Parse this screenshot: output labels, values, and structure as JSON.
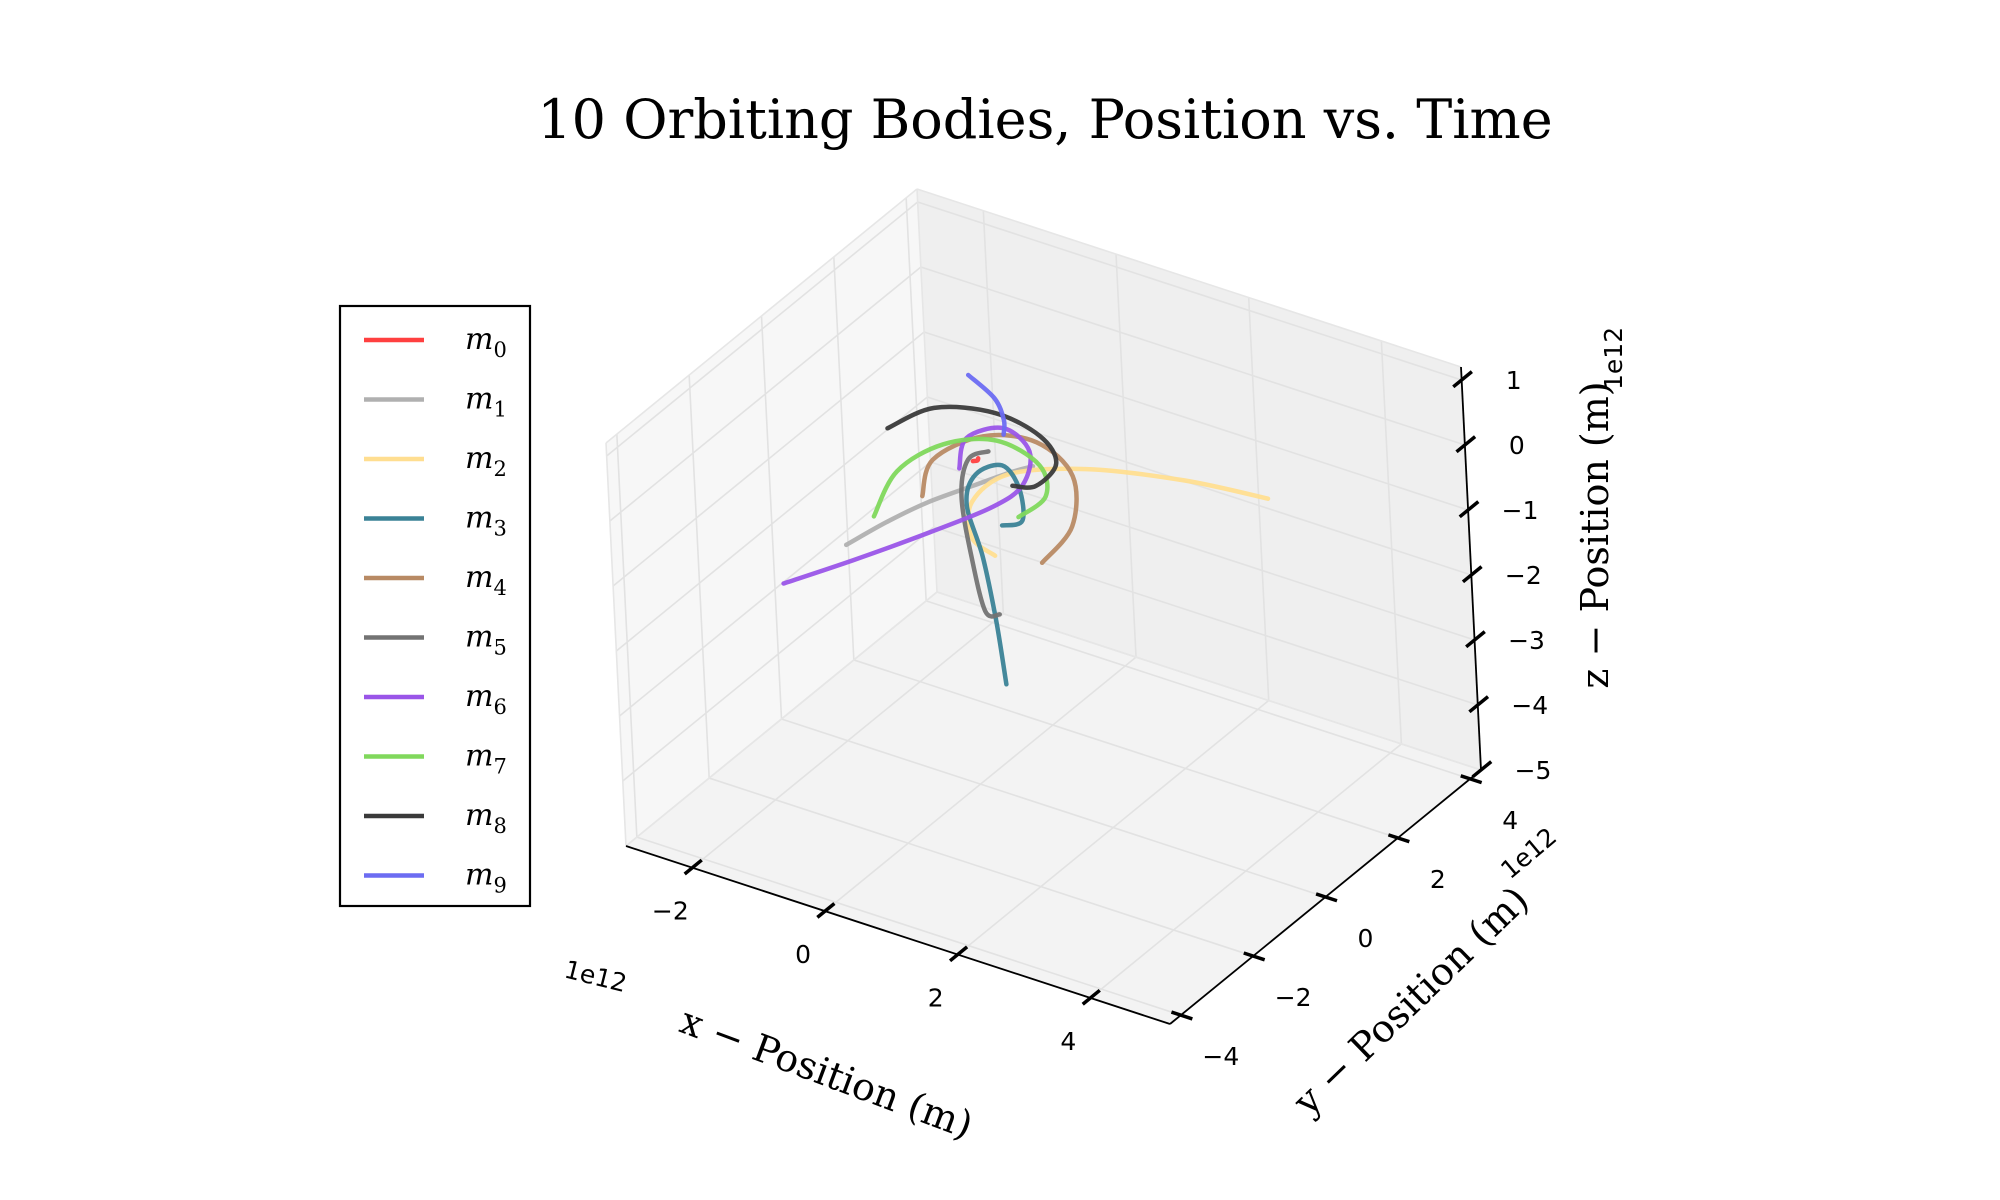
{
  "chart_data": {
    "type": "line",
    "projection": "3d",
    "title": "10 Orbiting Bodies, Position vs. Time",
    "xlabel": "x − Position (m)",
    "ylabel": "y − Position (m)",
    "zlabel": "z − Position (m)",
    "x_multiplier": "1e12",
    "y_multiplier": "1e12",
    "z_multiplier": "1e12",
    "xlim": [
      -3.0,
      5.2
    ],
    "ylim": [
      -4.3,
      4.3
    ],
    "zlim": [
      -5.0,
      1.2
    ],
    "x_ticks": [
      {
        "v": -2,
        "label": "−2"
      },
      {
        "v": 0,
        "label": "0"
      },
      {
        "v": 2,
        "label": "2"
      },
      {
        "v": 4,
        "label": "4"
      }
    ],
    "y_ticks": [
      {
        "v": -4,
        "label": "−4"
      },
      {
        "v": -2,
        "label": "−2"
      },
      {
        "v": 0,
        "label": "0"
      },
      {
        "v": 2,
        "label": "2"
      },
      {
        "v": 4,
        "label": "4"
      }
    ],
    "z_ticks": [
      {
        "v": -5,
        "label": "−5"
      },
      {
        "v": -4,
        "label": "−4"
      },
      {
        "v": -3,
        "label": "−3"
      },
      {
        "v": -2,
        "label": "−2"
      },
      {
        "v": -1,
        "label": "−1"
      },
      {
        "v": 0,
        "label": "0"
      },
      {
        "v": 1,
        "label": "1"
      }
    ],
    "grid": true,
    "legend_position": "left",
    "series": [
      {
        "name": "m",
        "sub": "0",
        "color": "#ff4040",
        "points": [
          [
            0.1,
            0.05,
            -0.02
          ],
          [
            0.14,
            0.1,
            -0.02
          ],
          [
            0.12,
            0.16,
            -0.02
          ]
        ]
      },
      {
        "name": "m",
        "sub": "1",
        "color": "#b0b0b0",
        "points": [
          [
            -1.3,
            -1.0,
            -1.3
          ],
          [
            -0.9,
            -0.6,
            -1.0
          ],
          [
            -0.5,
            -0.2,
            -0.75
          ],
          [
            0.0,
            0.2,
            -0.5
          ],
          [
            0.4,
            0.5,
            -0.3
          ],
          [
            0.7,
            0.6,
            -0.15
          ]
        ]
      },
      {
        "name": "m",
        "sub": "2",
        "color": "#ffde90",
        "points": [
          [
            3.7,
            1.6,
            -0.1
          ],
          [
            2.6,
            1.3,
            -0.05
          ],
          [
            1.4,
            0.8,
            -0.05
          ],
          [
            0.5,
            0.3,
            -0.2
          ],
          [
            0.2,
            -0.2,
            -0.5
          ],
          [
            0.4,
            -0.6,
            -0.8
          ],
          [
            0.8,
            -0.7,
            -0.9
          ]
        ]
      },
      {
        "name": "m",
        "sub": "3",
        "color": "#3a8296",
        "points": [
          [
            0.3,
            0.3,
            -3.5
          ],
          [
            0.25,
            0.2,
            -2.5
          ],
          [
            0.15,
            0.1,
            -1.5
          ],
          [
            0.0,
            0.0,
            -0.7
          ],
          [
            0.1,
            0.1,
            -0.25
          ],
          [
            0.4,
            0.3,
            -0.1
          ],
          [
            0.7,
            0.2,
            -0.3
          ],
          [
            0.9,
            -0.1,
            -0.6
          ],
          [
            0.7,
            -0.3,
            -0.65
          ]
        ]
      },
      {
        "name": "m",
        "sub": "4",
        "color": "#b88a64",
        "points": [
          [
            1.4,
            -0.5,
            -0.9
          ],
          [
            1.6,
            0.0,
            -0.5
          ],
          [
            1.3,
            0.6,
            -0.1
          ],
          [
            0.6,
            0.9,
            0.05
          ],
          [
            -0.1,
            0.7,
            0.0
          ],
          [
            -0.6,
            0.2,
            -0.3
          ],
          [
            -0.5,
            -0.3,
            -0.6
          ]
        ]
      },
      {
        "name": "m",
        "sub": "5",
        "color": "#737373",
        "points": [
          [
            1.0,
            -1.0,
            -1.6
          ],
          [
            0.9,
            -1.2,
            -1.5
          ],
          [
            0.5,
            -0.8,
            -1.0
          ],
          [
            0.1,
            -0.3,
            -0.4
          ],
          [
            0.0,
            0.1,
            -0.05
          ],
          [
            0.2,
            0.3,
            0.05
          ]
        ]
      },
      {
        "name": "m",
        "sub": "6",
        "color": "#9a55e8",
        "points": [
          [
            -2.0,
            -1.5,
            -1.9
          ],
          [
            -1.2,
            -1.0,
            -1.5
          ],
          [
            -0.3,
            -0.5,
            -1.0
          ],
          [
            0.4,
            0.0,
            -0.6
          ],
          [
            0.7,
            0.3,
            -0.3
          ],
          [
            0.6,
            0.7,
            0.0
          ],
          [
            0.1,
            0.9,
            0.1
          ],
          [
            -0.3,
            0.6,
            -0.05
          ],
          [
            -0.2,
            0.2,
            -0.3
          ]
        ]
      },
      {
        "name": "m",
        "sub": "7",
        "color": "#80d85c",
        "points": [
          [
            -1.2,
            -0.4,
            -1.1
          ],
          [
            -1.1,
            0.1,
            -0.6
          ],
          [
            -0.6,
            0.5,
            -0.2
          ],
          [
            0.1,
            0.7,
            0.0
          ],
          [
            0.8,
            0.6,
            -0.1
          ],
          [
            1.1,
            0.2,
            -0.3
          ],
          [
            0.9,
            -0.2,
            -0.5
          ]
        ]
      },
      {
        "name": "m",
        "sub": "8",
        "color": "#3a3a3a",
        "points": [
          [
            -1.5,
            0.6,
            -0.3
          ],
          [
            -1.0,
            1.0,
            0.0
          ],
          [
            -0.2,
            1.2,
            0.1
          ],
          [
            0.6,
            1.0,
            0.1
          ],
          [
            1.0,
            0.7,
            -0.05
          ],
          [
            0.9,
            0.3,
            -0.25
          ],
          [
            0.6,
            0.2,
            -0.3
          ]
        ]
      },
      {
        "name": "m",
        "sub": "9",
        "color": "#6c6cf2",
        "points": [
          [
            -0.8,
            1.6,
            0.3
          ],
          [
            -0.3,
            1.4,
            0.2
          ],
          [
            0.0,
            1.1,
            0.1
          ],
          [
            0.1,
            0.9,
            0.0
          ]
        ]
      }
    ]
  }
}
